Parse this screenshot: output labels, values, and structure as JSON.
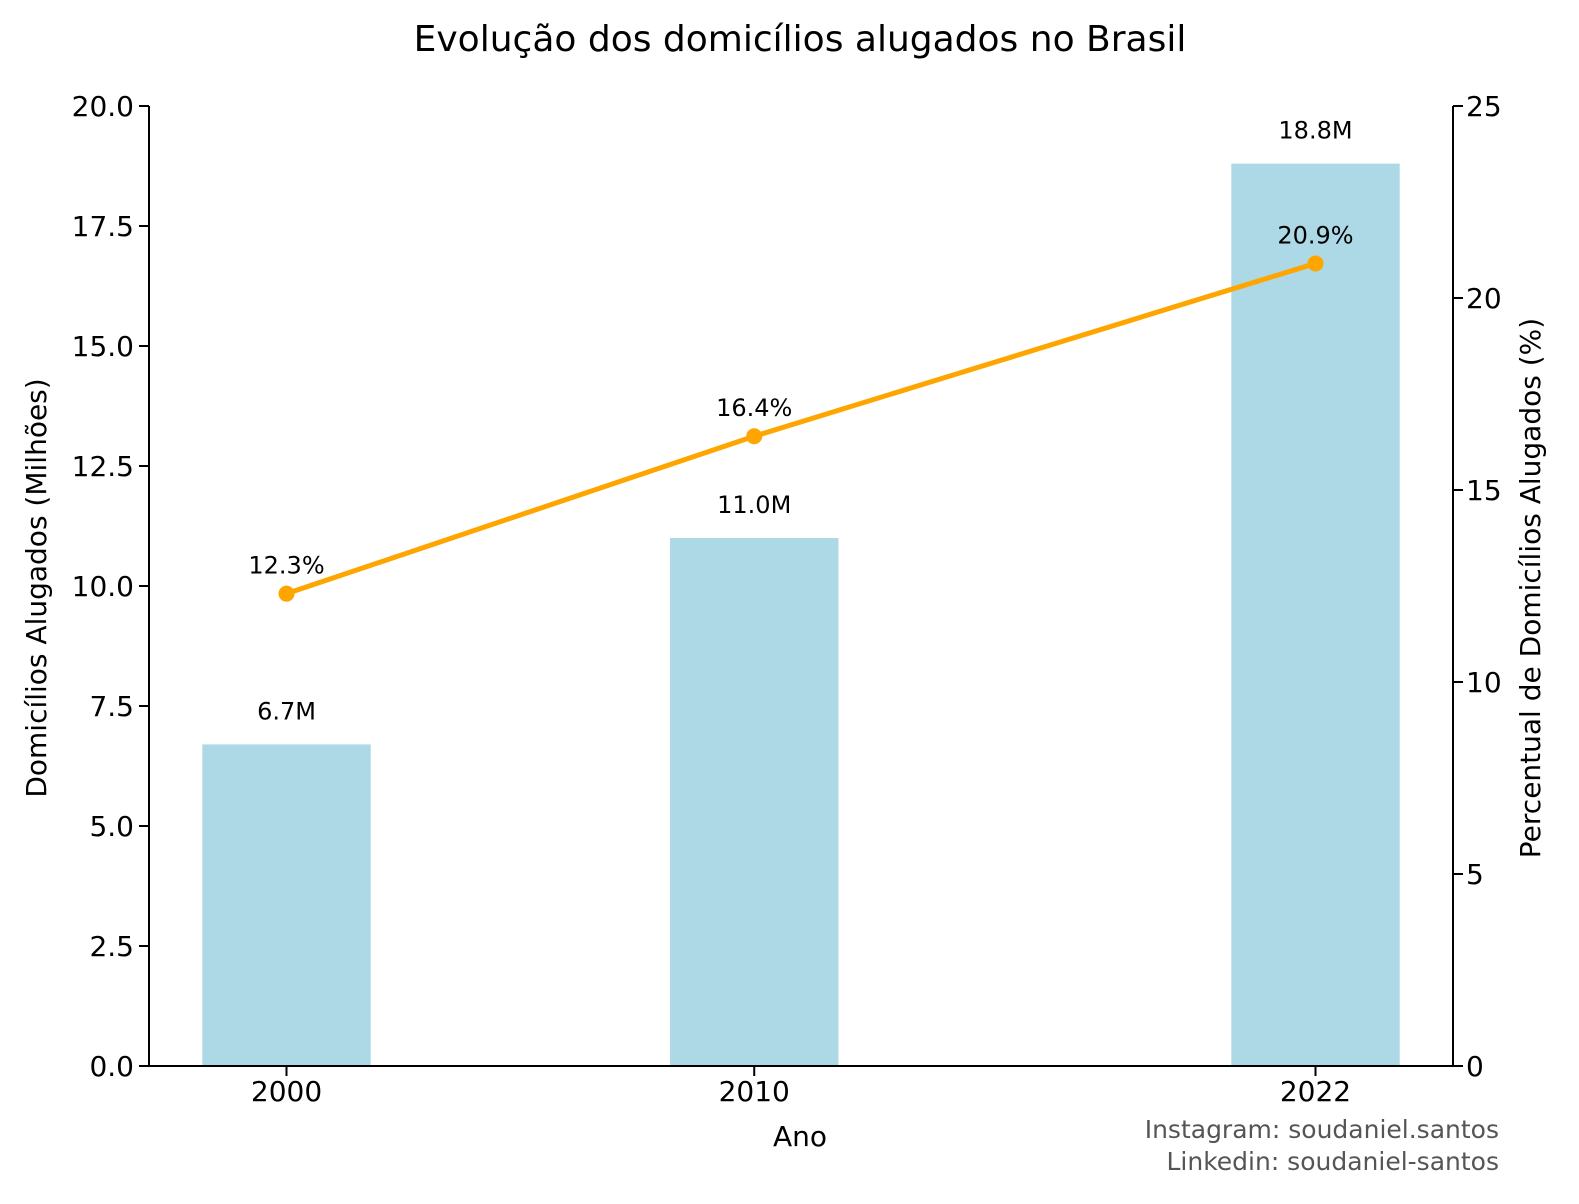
{
  "chart_data": {
    "type": "bar",
    "title": "Evolução dos domicílios alugados no Brasil",
    "xlabel": "Ano",
    "ylabel": "Domicílios Alugados (Milhões)",
    "y2label": "Percentual de Domicílios Alugados (%)",
    "categories": [
      "2000",
      "2010",
      "2022"
    ],
    "x": [
      2000,
      2010,
      2022
    ],
    "ylim": [
      0,
      20
    ],
    "y2lim": [
      0,
      25
    ],
    "yticks": [
      "0.0",
      "2.5",
      "5.0",
      "7.5",
      "10.0",
      "12.5",
      "15.0",
      "17.5",
      "20.0"
    ],
    "y2ticks": [
      "0",
      "5",
      "10",
      "15",
      "20",
      "25"
    ],
    "series": [
      {
        "kind": "bar",
        "axis": "left",
        "color": "#add8e6",
        "values": [
          6.7,
          11.0,
          18.8
        ],
        "labels": [
          "6.7M",
          "11.0M",
          "18.8M"
        ]
      },
      {
        "kind": "line",
        "axis": "right",
        "color": "#ffa500",
        "marker": "circle",
        "values": [
          12.3,
          16.4,
          20.9
        ],
        "labels": [
          "12.3%",
          "16.4%",
          "20.9%"
        ]
      }
    ],
    "grid": false,
    "legend": "none"
  },
  "credits": {
    "instagram": "Instagram: soudaniel.santos",
    "linkedin": "Linkedin: soudaniel-santos"
  }
}
